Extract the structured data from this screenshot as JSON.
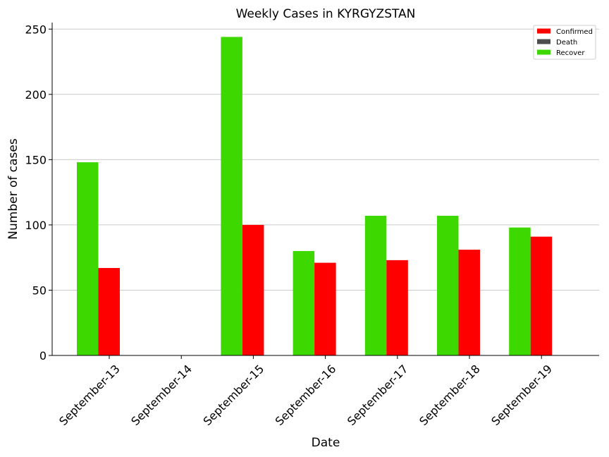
{
  "chart_data": {
    "type": "bar",
    "title": "Weekly Cases in KYRGYZSTAN",
    "xlabel": "Date",
    "ylabel": "Number of cases",
    "categories": [
      "September-13",
      "September-14",
      "September-15",
      "September-16",
      "September-17",
      "September-18",
      "September-19"
    ],
    "series": [
      {
        "name": "Recover",
        "color": "#3dd800",
        "values": [
          148,
          0,
          244,
          80,
          107,
          107,
          98
        ]
      },
      {
        "name": "Confirmed",
        "color": "#ff0000",
        "values": [
          67,
          0,
          100,
          71,
          73,
          81,
          91
        ]
      },
      {
        "name": "Death",
        "color": "#4d4d4d",
        "values": [
          0,
          0,
          0,
          0,
          0,
          0,
          0
        ]
      }
    ],
    "legend": [
      "Confirmed",
      "Death",
      "Recover"
    ],
    "legend_position": "top-right",
    "ylim": [
      0,
      255
    ],
    "yticks": [
      0,
      50,
      100,
      150,
      200,
      250
    ],
    "grid": "horizontal"
  }
}
